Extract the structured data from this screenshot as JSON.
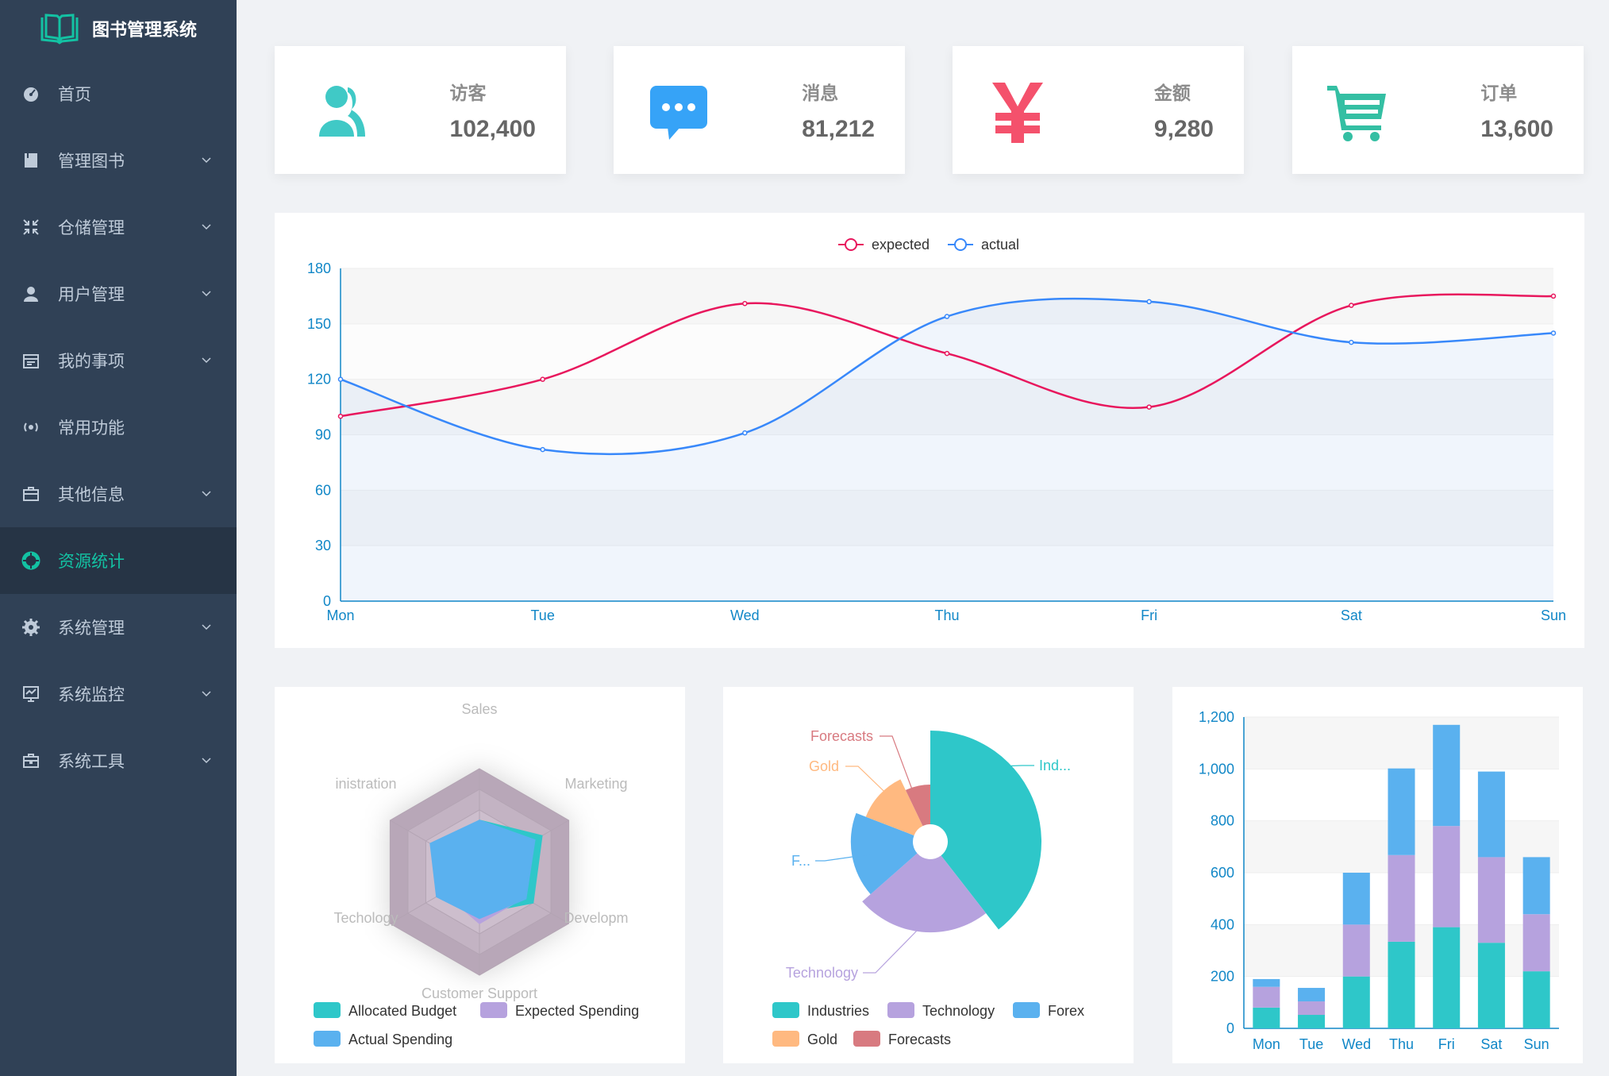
{
  "app": {
    "title": "图书管理系统"
  },
  "sidebar": {
    "items": [
      {
        "label": "首页",
        "icon": "dashboard-icon",
        "has_children": false,
        "active": false
      },
      {
        "label": "管理图书",
        "icon": "book-icon",
        "has_children": true,
        "active": false
      },
      {
        "label": "仓储管理",
        "icon": "shrink-icon",
        "has_children": true,
        "active": false
      },
      {
        "label": "用户管理",
        "icon": "user-icon",
        "has_children": true,
        "active": false
      },
      {
        "label": "我的事项",
        "icon": "calendar-icon",
        "has_children": true,
        "active": false
      },
      {
        "label": "常用功能",
        "icon": "broadcast-icon",
        "has_children": false,
        "active": false
      },
      {
        "label": "其他信息",
        "icon": "briefcase-icon",
        "has_children": true,
        "active": false
      },
      {
        "label": "资源统计",
        "icon": "pie-icon",
        "has_children": false,
        "active": true
      },
      {
        "label": "系统管理",
        "icon": "gear-icon",
        "has_children": true,
        "active": false
      },
      {
        "label": "系统监控",
        "icon": "monitor-icon",
        "has_children": true,
        "active": false
      },
      {
        "label": "系统工具",
        "icon": "toolbox-icon",
        "has_children": true,
        "active": false
      }
    ]
  },
  "stats": [
    {
      "label": "访客",
      "value": "102,400",
      "icon": "visitors-icon",
      "color": "#40c9c6"
    },
    {
      "label": "消息",
      "value": "81,212",
      "icon": "message-icon",
      "color": "#36a3f7"
    },
    {
      "label": "金额",
      "value": "9,280",
      "icon": "yen-icon",
      "color": "#f4516c"
    },
    {
      "label": "订单",
      "value": "13,600",
      "icon": "cart-icon",
      "color": "#34bfa3"
    }
  ],
  "colors": {
    "expected": "#e8175d",
    "actual": "#3888fa",
    "axis": "#1187c7",
    "teal": "#2ec7c9",
    "purple": "#b6a2de",
    "blue": "#5ab1ef",
    "orange": "#ffb980",
    "red": "#d87a80"
  },
  "chart_data": [
    {
      "type": "line",
      "title": "",
      "legend": [
        "expected",
        "actual"
      ],
      "categories": [
        "Mon",
        "Tue",
        "Wed",
        "Thu",
        "Fri",
        "Sat",
        "Sun"
      ],
      "series": [
        {
          "name": "expected",
          "values": [
            100,
            120,
            161,
            134,
            105,
            160,
            165
          ]
        },
        {
          "name": "actual",
          "values": [
            120,
            82,
            91,
            154,
            162,
            140,
            145
          ]
        }
      ],
      "y_ticks": [
        0,
        30,
        60,
        90,
        120,
        150,
        180
      ],
      "ylim": [
        0,
        180
      ]
    },
    {
      "type": "radar",
      "indicators": [
        "Sales",
        "Marketing",
        "Developm",
        "Customer Support",
        "Techology",
        "inistration"
      ],
      "max": 100,
      "series": [
        {
          "name": "Allocated Budget",
          "values": [
            50,
            70,
            60,
            40,
            30,
            40
          ]
        },
        {
          "name": "Expected Spending",
          "values": [
            40,
            60,
            50,
            50,
            40,
            50
          ]
        },
        {
          "name": "Actual Spending",
          "values": [
            50,
            62,
            52,
            45,
            48,
            55
          ]
        }
      ],
      "legend": [
        "Allocated Budget",
        "Expected Spending",
        "Actual Spending"
      ]
    },
    {
      "type": "pie",
      "rose": true,
      "slices": [
        {
          "name": "Industries",
          "value": 328,
          "label": "Ind..."
        },
        {
          "name": "Technology",
          "value": 200,
          "label": "Technology"
        },
        {
          "name": "Forex",
          "value": 144,
          "label": "F..."
        },
        {
          "name": "Gold",
          "value": 100,
          "label": "Gold"
        },
        {
          "name": "Forecasts",
          "value": 59,
          "label": "Forecasts"
        }
      ],
      "legend": [
        "Industries",
        "Technology",
        "Forex",
        "Gold",
        "Forecasts"
      ]
    },
    {
      "type": "bar",
      "stacked": true,
      "categories": [
        "Mon",
        "Tue",
        "Wed",
        "Thu",
        "Fri",
        "Sat",
        "Sun"
      ],
      "series": [
        {
          "name": "teal",
          "values": [
            80,
            52,
            200,
            334,
            390,
            330,
            220
          ]
        },
        {
          "name": "purple",
          "values": [
            80,
            52,
            200,
            334,
            390,
            330,
            220
          ]
        },
        {
          "name": "blue",
          "values": [
            30,
            52,
            200,
            334,
            390,
            330,
            220
          ]
        }
      ],
      "y_ticks": [
        "0",
        "200",
        "400",
        "600",
        "800",
        "1,000",
        "1,200"
      ],
      "ylim": [
        0,
        1200
      ]
    }
  ]
}
